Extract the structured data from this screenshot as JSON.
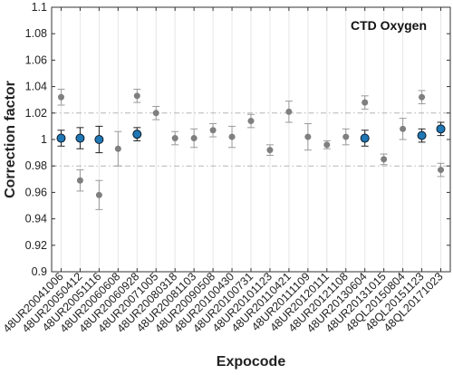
{
  "chart_data": {
    "type": "scatter",
    "annotation": "CTD Oxygen",
    "xlabel": "Expocode",
    "ylabel": "Correction factor",
    "ylim": [
      0.9,
      1.1
    ],
    "yticks": [
      "0.9",
      "0.92",
      "0.94",
      "0.96",
      "0.98",
      "1",
      "1.02",
      "1.04",
      "1.06",
      "1.08",
      "1.1"
    ],
    "categories": [
      "48UR20041006",
      "48UR20050412",
      "48UR20051116",
      "48UR20060608",
      "48UR20060928",
      "48UR20071005",
      "48UR20080318",
      "48UR20081103",
      "48UR20090508",
      "48UR20100430",
      "48UR20100731",
      "48UR20101123",
      "48UR20110421",
      "48UR20111109",
      "48UR20120111",
      "48UR20121108",
      "48UR20130604",
      "48UR20131015",
      "48QL20150804",
      "48QL20151123",
      "48QL20171023"
    ],
    "reference_lines": [
      0.98,
      1.02
    ],
    "grid": "vertical",
    "series": [
      {
        "color": "#7f7f7f",
        "values": [
          1.032,
          0.969,
          0.958,
          0.993,
          1.033,
          1.02,
          1.001,
          1.001,
          1.007,
          1.002,
          1.014,
          0.992,
          1.021,
          1.002,
          0.996,
          1.002,
          1.028,
          0.985,
          1.008,
          1.032,
          0.977
        ],
        "errors": [
          0.006,
          0.008,
          0.011,
          0.013,
          0.005,
          0.005,
          0.005,
          0.007,
          0.005,
          0.008,
          0.005,
          0.004,
          0.008,
          0.01,
          0.003,
          0.006,
          0.005,
          0.004,
          0.008,
          0.005,
          0.005
        ]
      },
      {
        "color": "#1f77b4",
        "values": [
          1.001,
          1.001,
          1.0,
          null,
          1.004,
          null,
          null,
          null,
          null,
          null,
          null,
          null,
          null,
          null,
          null,
          null,
          1.001,
          null,
          null,
          1.003,
          1.008
        ],
        "errors": [
          0.006,
          0.008,
          0.01,
          null,
          0.005,
          null,
          null,
          null,
          null,
          null,
          null,
          null,
          null,
          null,
          null,
          null,
          0.006,
          null,
          null,
          0.005,
          0.005
        ]
      }
    ]
  }
}
